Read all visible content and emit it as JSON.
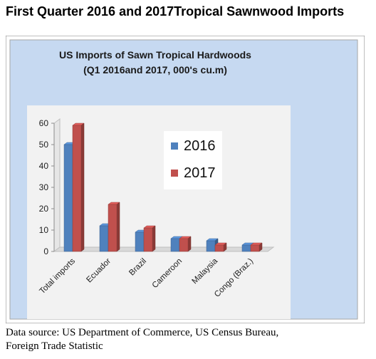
{
  "heading": "First Quarter 2016 and 2017Tropical Sawnwood Imports",
  "source": {
    "line1": "Data source: US Department of Commerce, US Census Bureau,",
    "line2": "Foreign Trade Statistic"
  },
  "chart_data": {
    "type": "bar",
    "title": "US Imports of Sawn Tropical Hardwoods",
    "subtitle": "(Q1 2016and 2017, 000's cu.m)",
    "categories": [
      "Total imports",
      "Ecuador",
      "Brazil",
      "Cameroon",
      "Malaysia",
      "Congo (Braz.)"
    ],
    "series": [
      {
        "name": "2016",
        "values": [
          50,
          12,
          9,
          6,
          5,
          3
        ],
        "color": "#4f81bd"
      },
      {
        "name": "2017",
        "values": [
          59,
          22,
          11,
          6,
          3,
          3
        ],
        "color": "#c0504d"
      }
    ],
    "ylim": [
      0,
      60
    ],
    "yticks": [
      0,
      10,
      20,
      30,
      40,
      50,
      60
    ],
    "grid": false,
    "legend_position": "top-right",
    "style": "3d-clustered",
    "colors": {
      "outer_background": "#c6d9f1",
      "plot_background": "#f2f2f2",
      "inner_background": "#ffffff"
    }
  }
}
